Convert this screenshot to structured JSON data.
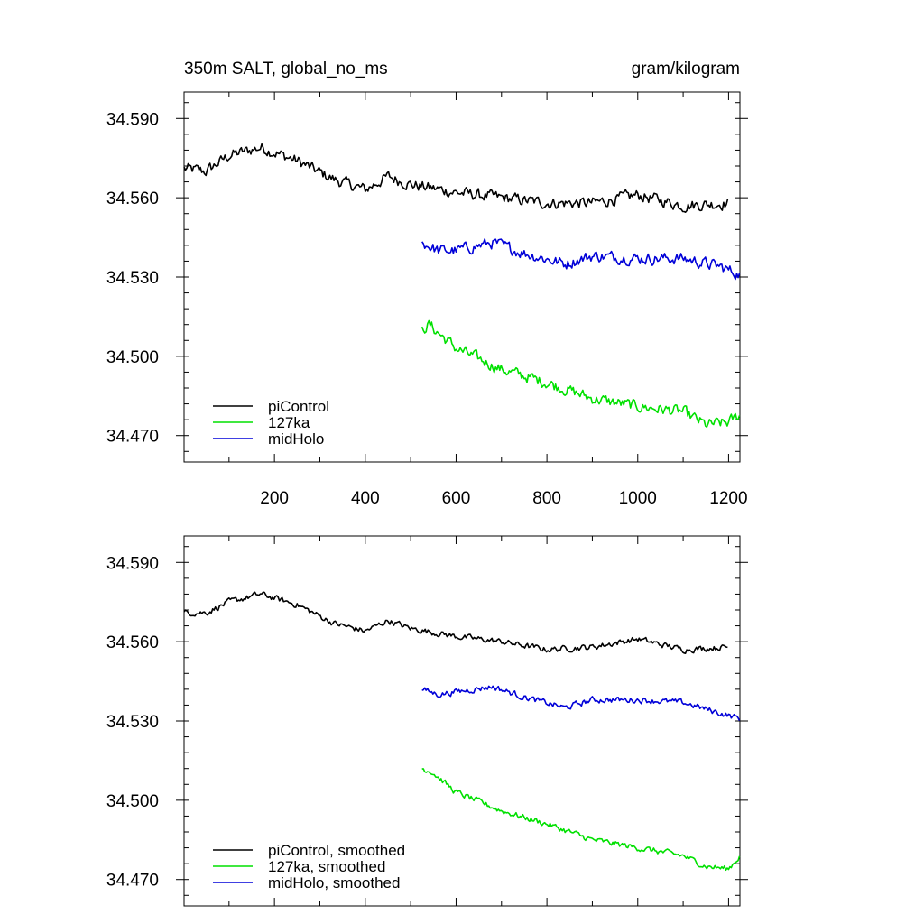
{
  "header": {
    "title": "350m SALT, global_no_ms",
    "units": "gram/kilogram"
  },
  "colors": {
    "piControl": "#000000",
    "127ka": "#00e000",
    "midHolo": "#0000d8"
  },
  "chart_data": [
    {
      "type": "line",
      "title": "350m SALT, global_no_ms",
      "units_label": "gram/kilogram",
      "xlim": [
        1,
        1225
      ],
      "ylim": [
        34.46,
        34.6
      ],
      "x_ticks": [
        200,
        400,
        600,
        800,
        1000,
        1200
      ],
      "y_ticks": [
        34.47,
        34.5,
        34.53,
        34.56,
        34.59
      ],
      "y_tick_labels": [
        "34.470",
        "34.500",
        "34.530",
        "34.560",
        "34.590"
      ],
      "grid": false,
      "legend_position": "bottom-left",
      "noise": 0.0035,
      "series": [
        {
          "name": "piControl",
          "color_key": "piControl",
          "x_range": [
            1,
            1200
          ],
          "anchors": [
            [
              1,
              34.571
            ],
            [
              50,
              34.57
            ],
            [
              100,
              34.576
            ],
            [
              170,
              34.579
            ],
            [
              250,
              34.574
            ],
            [
              330,
              34.567
            ],
            [
              400,
              34.563
            ],
            [
              450,
              34.568
            ],
            [
              500,
              34.565
            ],
            [
              600,
              34.562
            ],
            [
              700,
              34.56
            ],
            [
              800,
              34.558
            ],
            [
              900,
              34.558
            ],
            [
              1000,
              34.561
            ],
            [
              1100,
              34.557
            ],
            [
              1200,
              34.558
            ]
          ]
        },
        {
          "name": "127ka",
          "color_key": "127ka",
          "x_range": [
            525,
            1225
          ],
          "anchors": [
            [
              525,
              34.51
            ],
            [
              540,
              34.512
            ],
            [
              600,
              34.503
            ],
            [
              700,
              34.495
            ],
            [
              800,
              34.49
            ],
            [
              900,
              34.484
            ],
            [
              1000,
              34.481
            ],
            [
              1100,
              34.479
            ],
            [
              1150,
              34.474
            ],
            [
              1200,
              34.475
            ],
            [
              1225,
              34.478
            ]
          ]
        },
        {
          "name": "midHolo",
          "color_key": "midHolo",
          "x_range": [
            525,
            1225
          ],
          "anchors": [
            [
              525,
              34.543
            ],
            [
              560,
              34.54
            ],
            [
              600,
              34.54
            ],
            [
              680,
              34.543
            ],
            [
              750,
              34.539
            ],
            [
              840,
              34.535
            ],
            [
              900,
              34.538
            ],
            [
              1000,
              34.537
            ],
            [
              1100,
              34.537
            ],
            [
              1180,
              34.534
            ],
            [
              1225,
              34.531
            ]
          ]
        }
      ]
    },
    {
      "type": "line",
      "xlim": [
        1,
        1225
      ],
      "ylim": [
        34.46,
        34.6
      ],
      "x_ticks": [
        200,
        400,
        600,
        800,
        1000,
        1200
      ],
      "y_ticks": [
        34.47,
        34.5,
        34.53,
        34.56,
        34.59
      ],
      "y_tick_labels": [
        "34.470",
        "34.500",
        "34.530",
        "34.560",
        "34.590"
      ],
      "grid": false,
      "legend_position": "bottom-left",
      "noise": 0.0018,
      "series": [
        {
          "name": "piControl, smoothed",
          "color_key": "piControl",
          "x_range": [
            1,
            1200
          ],
          "anchors": [
            [
              1,
              34.571
            ],
            [
              50,
              34.571
            ],
            [
              100,
              34.575
            ],
            [
              170,
              34.578
            ],
            [
              250,
              34.574
            ],
            [
              330,
              34.567
            ],
            [
              400,
              34.564
            ],
            [
              450,
              34.568
            ],
            [
              500,
              34.565
            ],
            [
              600,
              34.562
            ],
            [
              700,
              34.56
            ],
            [
              800,
              34.557
            ],
            [
              900,
              34.558
            ],
            [
              1000,
              34.561
            ],
            [
              1100,
              34.557
            ],
            [
              1200,
              34.558
            ]
          ]
        },
        {
          "name": "127ka, smoothed",
          "color_key": "127ka",
          "x_range": [
            525,
            1225
          ],
          "anchors": [
            [
              525,
              34.512
            ],
            [
              545,
              34.511
            ],
            [
              600,
              34.503
            ],
            [
              700,
              34.496
            ],
            [
              800,
              34.491
            ],
            [
              900,
              34.485
            ],
            [
              1000,
              34.482
            ],
            [
              1100,
              34.479
            ],
            [
              1150,
              34.475
            ],
            [
              1200,
              34.474
            ],
            [
              1225,
              34.479
            ]
          ]
        },
        {
          "name": "midHolo, smoothed",
          "color_key": "midHolo",
          "x_range": [
            525,
            1225
          ],
          "anchors": [
            [
              525,
              34.542
            ],
            [
              560,
              34.54
            ],
            [
              600,
              34.541
            ],
            [
              680,
              34.543
            ],
            [
              750,
              34.539
            ],
            [
              840,
              34.535
            ],
            [
              900,
              34.538
            ],
            [
              1000,
              34.538
            ],
            [
              1100,
              34.537
            ],
            [
              1180,
              34.533
            ],
            [
              1225,
              34.531
            ]
          ]
        }
      ]
    }
  ]
}
